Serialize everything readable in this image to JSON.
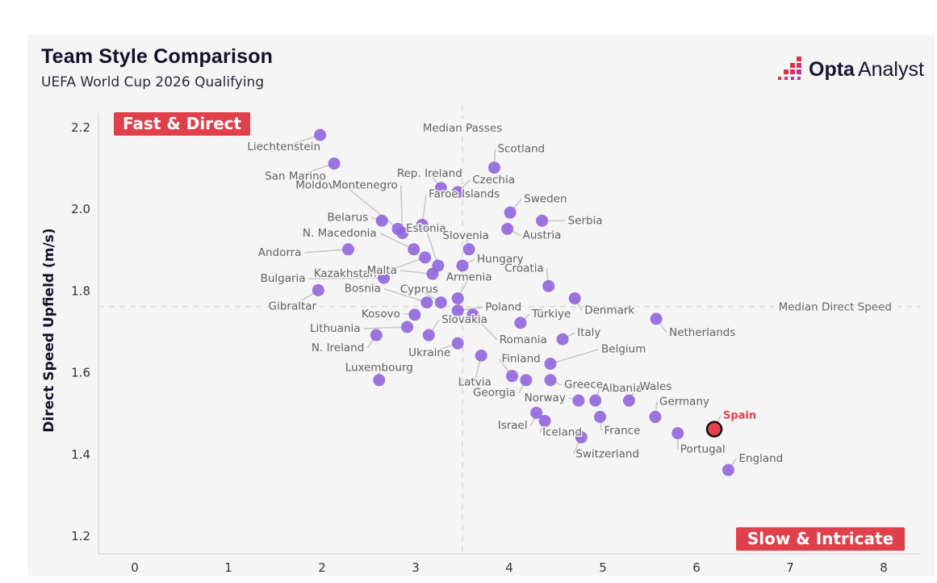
{
  "header": {
    "title": "Team Style Comparison",
    "subtitle": "UEFA World Cup 2026 Qualifying",
    "logo_bold": "Opta",
    "logo_regular": "Analyst",
    "logo_icon": "opta-bars-icon"
  },
  "colors": {
    "point": "#8e62dc",
    "highlight": "#e0424f",
    "quadrant_badge": "#e0404c",
    "median_line": "#d0d0d0"
  },
  "chart_data": {
    "type": "scatter",
    "title": "Team Style Comparison",
    "subtitle": "UEFA World Cup 2026 Qualifying",
    "xlabel": "",
    "ylabel": "Direct Speed Upfield (m/s)",
    "xlim": [
      -0.2,
      8.3
    ],
    "ylim": [
      1.15,
      2.25
    ],
    "x_ticks": [
      "0",
      "1",
      "2",
      "3",
      "4",
      "5",
      "6",
      "7",
      "8"
    ],
    "y_ticks": [
      "1.2",
      "1.4",
      "1.6",
      "1.8",
      "2.0",
      "2.2"
    ],
    "grid": false,
    "median_x": 3.5,
    "median_y": 1.76,
    "median_x_label": "Median Passes",
    "median_y_label": "Median Direct Speed",
    "quadrant_labels": {
      "top_left": "Fast & Direct",
      "bottom_right": "Slow & Intricate"
    },
    "highlight_team": "Spain",
    "points": [
      {
        "team": "Liechtenstein",
        "x": 1.98,
        "y": 2.18
      },
      {
        "team": "San Marino",
        "x": 2.13,
        "y": 2.11
      },
      {
        "team": "Moldova",
        "x": 2.81,
        "y": 1.95
      },
      {
        "team": "Montenegro",
        "x": 2.86,
        "y": 1.94
      },
      {
        "team": "Belarus",
        "x": 2.64,
        "y": 1.97
      },
      {
        "team": "Faroe Islands",
        "x": 3.07,
        "y": 1.96
      },
      {
        "team": "Rep. Ireland",
        "x": 3.27,
        "y": 2.05
      },
      {
        "team": "Czechia",
        "x": 3.45,
        "y": 2.04
      },
      {
        "team": "Scotland",
        "x": 3.84,
        "y": 2.1
      },
      {
        "team": "Sweden",
        "x": 4.01,
        "y": 1.99
      },
      {
        "team": "Serbia",
        "x": 4.35,
        "y": 1.97
      },
      {
        "team": "Austria",
        "x": 3.98,
        "y": 1.95
      },
      {
        "team": "N. Macedonia",
        "x": 2.98,
        "y": 1.9
      },
      {
        "team": "Andorra",
        "x": 2.28,
        "y": 1.9
      },
      {
        "team": "Kazakhstan",
        "x": 3.1,
        "y": 1.88
      },
      {
        "team": "Estonia",
        "x": 3.24,
        "y": 1.86
      },
      {
        "team": "Malta",
        "x": 3.18,
        "y": 1.84
      },
      {
        "team": "Slovenia",
        "x": 3.57,
        "y": 1.9
      },
      {
        "team": "Hungary",
        "x": 3.5,
        "y": 1.86
      },
      {
        "team": "Croatia",
        "x": 4.42,
        "y": 1.81
      },
      {
        "team": "Bulgaria",
        "x": 2.66,
        "y": 1.83
      },
      {
        "team": "Gibraltar",
        "x": 1.96,
        "y": 1.8
      },
      {
        "team": "Bosnia",
        "x": 3.12,
        "y": 1.77
      },
      {
        "team": "Cyprus",
        "x": 3.27,
        "y": 1.77
      },
      {
        "team": "Armenia",
        "x": 3.45,
        "y": 1.78
      },
      {
        "team": "Poland",
        "x": 3.45,
        "y": 1.75
      },
      {
        "team": "Denmark",
        "x": 4.7,
        "y": 1.78
      },
      {
        "team": "Kosovo",
        "x": 2.99,
        "y": 1.74
      },
      {
        "team": "Romania",
        "x": 3.61,
        "y": 1.74
      },
      {
        "team": "Türkiye",
        "x": 4.12,
        "y": 1.72
      },
      {
        "team": "Netherlands",
        "x": 5.57,
        "y": 1.73
      },
      {
        "team": "Lithuania",
        "x": 2.91,
        "y": 1.71
      },
      {
        "team": "Slovakia",
        "x": 3.14,
        "y": 1.69
      },
      {
        "team": "N. Ireland",
        "x": 2.58,
        "y": 1.69
      },
      {
        "team": "Italy",
        "x": 4.57,
        "y": 1.68
      },
      {
        "team": "Ukraine",
        "x": 3.45,
        "y": 1.67
      },
      {
        "team": "Latvia",
        "x": 3.7,
        "y": 1.64
      },
      {
        "team": "Belgium",
        "x": 4.44,
        "y": 1.62
      },
      {
        "team": "Finland",
        "x": 4.03,
        "y": 1.59
      },
      {
        "team": "Georgia",
        "x": 4.18,
        "y": 1.58
      },
      {
        "team": "Greece",
        "x": 4.44,
        "y": 1.58
      },
      {
        "team": "Luxembourg",
        "x": 2.61,
        "y": 1.58
      },
      {
        "team": "Norway",
        "x": 4.74,
        "y": 1.53
      },
      {
        "team": "Albania",
        "x": 4.92,
        "y": 1.53
      },
      {
        "team": "Wales",
        "x": 5.28,
        "y": 1.53
      },
      {
        "team": "Israel",
        "x": 4.29,
        "y": 1.5
      },
      {
        "team": "Iceland",
        "x": 4.38,
        "y": 1.48
      },
      {
        "team": "France",
        "x": 4.97,
        "y": 1.49
      },
      {
        "team": "Germany",
        "x": 5.56,
        "y": 1.49
      },
      {
        "team": "Switzerland",
        "x": 4.77,
        "y": 1.44
      },
      {
        "team": "Portugal",
        "x": 5.8,
        "y": 1.45
      },
      {
        "team": "Spain",
        "x": 6.19,
        "y": 1.46
      },
      {
        "team": "England",
        "x": 6.34,
        "y": 1.36
      }
    ]
  }
}
